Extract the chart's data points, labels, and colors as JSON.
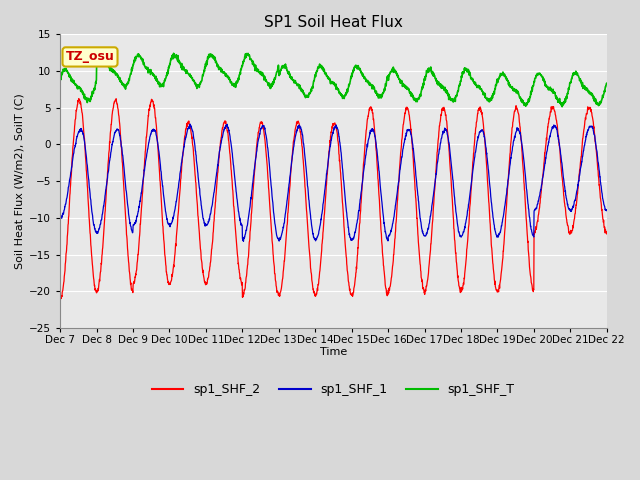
{
  "title": "SP1 Soil Heat Flux",
  "ylabel": "Soil Heat Flux (W/m2), SoilT (C)",
  "xlabel": "Time",
  "ylim": [
    -25,
    15
  ],
  "xlim": [
    0,
    15
  ],
  "xtick_labels": [
    "Dec 7",
    "Dec 8",
    "Dec 9",
    "Dec 10",
    "Dec 11",
    "Dec 12",
    "Dec 13",
    "Dec 14",
    "Dec 15",
    "Dec 16",
    "Dec 17",
    "Dec 18",
    "Dec 19",
    "Dec 20",
    "Dec 21",
    "Dec 22"
  ],
  "xtick_positions": [
    0,
    1,
    2,
    3,
    4,
    5,
    6,
    7,
    8,
    9,
    10,
    11,
    12,
    13,
    14,
    15
  ],
  "color_shf2": "#ff0000",
  "color_shf1": "#0000cc",
  "color_shft": "#00bb00",
  "label_shf2": "sp1_SHF_2",
  "label_shf1": "sp1_SHF_1",
  "label_shft": "sp1_SHF_T",
  "annotation_text": "TZ_osu",
  "annotation_color": "#cc0000",
  "annotation_bg": "#ffffcc",
  "annotation_border": "#ccaa00",
  "bg_color": "#e8e8e8",
  "fig_bg_color": "#d8d8d8",
  "grid_color": "#ffffff",
  "title_fontsize": 11,
  "axis_fontsize": 8,
  "tick_fontsize": 7.5,
  "legend_fontsize": 9
}
